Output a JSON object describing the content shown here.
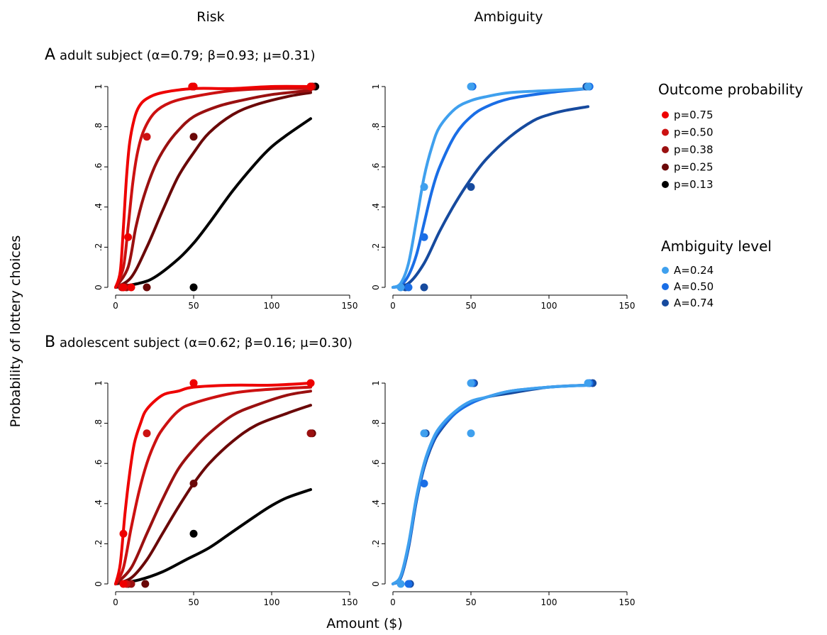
{
  "figure": {
    "col_titles": [
      "Risk",
      "Ambiguity"
    ],
    "ylabel": "Probability of lottery  choices",
    "xlabel": "Amount ($)",
    "rows": [
      {
        "label": "A",
        "title": "adult subject (α=0.79; β=0.93; μ=0.31)"
      },
      {
        "label": "B",
        "title": "adolescent subject (α=0.62; β=0.16; μ=0.30)"
      }
    ]
  },
  "legend": {
    "risk": {
      "title": "Outcome probability",
      "items": [
        {
          "label": "p=0.75",
          "color": "#ee0000"
        },
        {
          "label": "p=0.50",
          "color": "#cc1111"
        },
        {
          "label": "p=0.38",
          "color": "#9a1010"
        },
        {
          "label": "p=0.25",
          "color": "#6a0808"
        },
        {
          "label": "p=0.13",
          "color": "#000000"
        }
      ]
    },
    "ambiguity": {
      "title": "Ambiguity level",
      "items": [
        {
          "label": "A=0.24",
          "color": "#3fa0ee"
        },
        {
          "label": "A=0.50",
          "color": "#1a6ee6"
        },
        {
          "label": "A=0.74",
          "color": "#164a9e"
        }
      ]
    }
  },
  "chart_data": [
    {
      "panel": "A-Risk",
      "type": "line",
      "xlim": [
        0,
        150
      ],
      "ylim": [
        0,
        1
      ],
      "xticks": [
        0,
        50,
        100,
        150
      ],
      "yticks": [
        0,
        0.2,
        0.4,
        0.6,
        0.8,
        1
      ],
      "ytick_labels": [
        "0",
        ".2",
        ".4",
        ".6",
        ".8",
        "1"
      ],
      "series": [
        {
          "name": "p=0.75",
          "color": "#ee0000",
          "x": [
            0,
            3,
            5,
            7,
            9,
            12,
            15,
            20,
            30,
            50,
            75,
            100,
            125
          ],
          "y": [
            0,
            0.08,
            0.3,
            0.55,
            0.72,
            0.84,
            0.9,
            0.94,
            0.97,
            0.99,
            0.99,
            1.0,
            1.0
          ],
          "points": [
            [
              5,
              0
            ],
            [
              8,
              0.25
            ],
            [
              10,
              0
            ],
            [
              50,
              1.0
            ],
            [
              49,
              1.0
            ],
            [
              125,
              1.0
            ]
          ]
        },
        {
          "name": "p=0.50",
          "color": "#cc1111",
          "x": [
            0,
            5,
            8,
            11,
            14,
            18,
            25,
            35,
            50,
            75,
            100,
            125
          ],
          "y": [
            0,
            0.1,
            0.3,
            0.52,
            0.67,
            0.78,
            0.87,
            0.92,
            0.95,
            0.98,
            0.99,
            0.99
          ],
          "points": [
            [
              4,
              0
            ],
            [
              20,
              0.75
            ],
            [
              50,
              1.0
            ],
            [
              125,
              1.0
            ]
          ]
        },
        {
          "name": "p=0.38",
          "color": "#9a1010",
          "x": [
            0,
            8,
            13,
            18,
            25,
            32,
            40,
            50,
            65,
            80,
            100,
            125
          ],
          "y": [
            0,
            0.1,
            0.3,
            0.45,
            0.6,
            0.7,
            0.78,
            0.85,
            0.9,
            0.93,
            0.96,
            0.98
          ],
          "points": [
            [
              7,
              0
            ],
            [
              50,
              1.0
            ],
            [
              126,
              1.0
            ]
          ]
        },
        {
          "name": "p=0.25",
          "color": "#6a0808",
          "x": [
            0,
            10,
            20,
            30,
            40,
            50,
            60,
            75,
            90,
            110,
            125
          ],
          "y": [
            0,
            0.05,
            0.2,
            0.38,
            0.55,
            0.67,
            0.77,
            0.86,
            0.91,
            0.95,
            0.97
          ],
          "points": [
            [
              20,
              0
            ],
            [
              50,
              0.75
            ],
            [
              126,
              1.0
            ]
          ]
        },
        {
          "name": "p=0.13",
          "color": "#000000",
          "x": [
            0,
            15,
            25,
            40,
            50,
            60,
            75,
            90,
            100,
            110,
            125
          ],
          "y": [
            0,
            0.02,
            0.05,
            0.14,
            0.22,
            0.32,
            0.48,
            0.62,
            0.7,
            0.76,
            0.84
          ],
          "points": [
            [
              50,
              0
            ],
            [
              128,
              1.0
            ]
          ]
        }
      ]
    },
    {
      "panel": "A-Ambiguity",
      "type": "line",
      "xlim": [
        0,
        150
      ],
      "ylim": [
        0,
        1
      ],
      "xticks": [
        0,
        50,
        100,
        150
      ],
      "yticks": [
        0,
        0.2,
        0.4,
        0.6,
        0.8,
        1
      ],
      "ytick_labels": [
        "0",
        ".2",
        ".4",
        ".6",
        ".8",
        "1"
      ],
      "series": [
        {
          "name": "A=0.24",
          "color": "#3fa0ee",
          "x": [
            0,
            5,
            10,
            15,
            20,
            25,
            30,
            40,
            50,
            60,
            75,
            100,
            125
          ],
          "y": [
            0,
            0.02,
            0.12,
            0.33,
            0.55,
            0.7,
            0.8,
            0.89,
            0.93,
            0.95,
            0.97,
            0.98,
            0.99
          ],
          "points": [
            [
              5,
              0
            ],
            [
              20,
              0.5
            ],
            [
              50,
              1.0
            ],
            [
              125,
              1.0
            ]
          ]
        },
        {
          "name": "A=0.50",
          "color": "#1a6ee6",
          "x": [
            0,
            5,
            10,
            15,
            20,
            25,
            30,
            40,
            50,
            60,
            75,
            100,
            125
          ],
          "y": [
            0,
            0.01,
            0.06,
            0.16,
            0.32,
            0.48,
            0.6,
            0.76,
            0.85,
            0.9,
            0.94,
            0.97,
            0.99
          ],
          "points": [
            [
              10,
              0
            ],
            [
              20,
              0.25
            ],
            [
              51,
              1.0
            ],
            [
              126,
              1.0
            ]
          ]
        },
        {
          "name": "A=0.74",
          "color": "#164a9e",
          "x": [
            0,
            10,
            20,
            30,
            40,
            50,
            60,
            75,
            90,
            100,
            110,
            125
          ],
          "y": [
            0,
            0.02,
            0.12,
            0.28,
            0.42,
            0.54,
            0.64,
            0.75,
            0.83,
            0.86,
            0.88,
            0.9
          ],
          "points": [
            [
              8,
              0
            ],
            [
              20,
              0
            ],
            [
              50,
              0.5
            ],
            [
              124,
              1.0
            ]
          ]
        }
      ]
    },
    {
      "panel": "B-Risk",
      "type": "line",
      "xlim": [
        0,
        150
      ],
      "ylim": [
        0,
        1
      ],
      "xticks": [
        0,
        50,
        100,
        150
      ],
      "yticks": [
        0,
        0.2,
        0.4,
        0.6,
        0.8,
        1
      ],
      "ytick_labels": [
        "0",
        ".2",
        ".4",
        ".6",
        ".8",
        "1"
      ],
      "series": [
        {
          "name": "p=0.75",
          "color": "#ee0000",
          "x": [
            0,
            3,
            6,
            9,
            12,
            16,
            20,
            30,
            40,
            50,
            75,
            100,
            125
          ],
          "y": [
            0,
            0.1,
            0.35,
            0.55,
            0.7,
            0.8,
            0.87,
            0.94,
            0.96,
            0.98,
            0.99,
            0.99,
            1.0
          ],
          "points": [
            [
              5,
              0.25
            ],
            [
              5,
              0
            ],
            [
              50,
              1.0
            ],
            [
              125,
              1.0
            ]
          ]
        },
        {
          "name": "p=0.50",
          "color": "#cc1111",
          "x": [
            0,
            5,
            10,
            15,
            20,
            25,
            30,
            40,
            50,
            75,
            100,
            125
          ],
          "y": [
            0,
            0.08,
            0.28,
            0.46,
            0.6,
            0.7,
            0.77,
            0.86,
            0.9,
            0.95,
            0.97,
            0.98
          ],
          "points": [
            [
              7,
              0
            ],
            [
              20,
              0.75
            ],
            [
              50,
              1.0
            ],
            [
              125,
              1.0
            ]
          ]
        },
        {
          "name": "p=0.38",
          "color": "#9a1010",
          "x": [
            0,
            10,
            20,
            30,
            40,
            50,
            60,
            75,
            90,
            110,
            125
          ],
          "y": [
            0,
            0.08,
            0.25,
            0.42,
            0.57,
            0.67,
            0.75,
            0.84,
            0.89,
            0.94,
            0.96
          ],
          "points": [
            [
              10,
              0
            ],
            [
              125,
              0.75
            ]
          ]
        },
        {
          "name": "p=0.25",
          "color": "#6a0808",
          "x": [
            0,
            10,
            20,
            30,
            40,
            50,
            60,
            75,
            90,
            110,
            125
          ],
          "y": [
            0,
            0.03,
            0.12,
            0.25,
            0.38,
            0.5,
            0.6,
            0.71,
            0.79,
            0.85,
            0.89
          ],
          "points": [
            [
              19,
              0
            ],
            [
              50,
              0.5
            ],
            [
              126,
              0.75
            ]
          ]
        },
        {
          "name": "p=0.13",
          "color": "#000000",
          "x": [
            0,
            15,
            30,
            45,
            60,
            75,
            90,
            100,
            110,
            125
          ],
          "y": [
            0,
            0.02,
            0.06,
            0.12,
            0.18,
            0.26,
            0.34,
            0.39,
            0.43,
            0.47
          ],
          "points": [
            [
              8,
              0
            ],
            [
              50,
              0.25
            ]
          ]
        }
      ]
    },
    {
      "panel": "B-Ambiguity",
      "type": "line",
      "xlim": [
        0,
        150
      ],
      "ylim": [
        0,
        1
      ],
      "xticks": [
        0,
        50,
        100,
        150
      ],
      "yticks": [
        0,
        0.2,
        0.4,
        0.6,
        0.8,
        1
      ],
      "ytick_labels": [
        "0",
        ".2",
        ".4",
        ".6",
        ".8",
        "1"
      ],
      "series": [
        {
          "name": "A=0.24",
          "color": "#3fa0ee",
          "x": [
            0,
            5,
            10,
            15,
            20,
            25,
            30,
            40,
            50,
            60,
            75,
            100,
            125
          ],
          "y": [
            0,
            0.04,
            0.2,
            0.43,
            0.6,
            0.71,
            0.78,
            0.86,
            0.91,
            0.93,
            0.96,
            0.98,
            0.99
          ],
          "points": [
            [
              5,
              0
            ],
            [
              20,
              0.75
            ],
            [
              50,
              0.75
            ],
            [
              50,
              1.0
            ],
            [
              125,
              1.0
            ]
          ]
        },
        {
          "name": "A=0.50",
          "color": "#1a6ee6",
          "x": [
            0,
            5,
            10,
            15,
            20,
            25,
            30,
            40,
            50,
            60,
            75,
            100,
            125
          ],
          "y": [
            0,
            0.035,
            0.19,
            0.42,
            0.59,
            0.7,
            0.77,
            0.85,
            0.9,
            0.93,
            0.96,
            0.98,
            0.99
          ],
          "points": [
            [
              10,
              0
            ],
            [
              20,
              0.5
            ],
            [
              51,
              1.0
            ],
            [
              126,
              1.0
            ]
          ]
        },
        {
          "name": "A=0.74",
          "color": "#164a9e",
          "x": [
            0,
            5,
            10,
            15,
            20,
            25,
            30,
            40,
            50,
            60,
            75,
            100,
            125
          ],
          "y": [
            0,
            0.03,
            0.18,
            0.41,
            0.58,
            0.69,
            0.76,
            0.85,
            0.9,
            0.93,
            0.95,
            0.98,
            0.99
          ],
          "points": [
            [
              11,
              0
            ],
            [
              21,
              0.75
            ],
            [
              52,
              1.0
            ],
            [
              128,
              1.0
            ]
          ]
        }
      ]
    }
  ]
}
